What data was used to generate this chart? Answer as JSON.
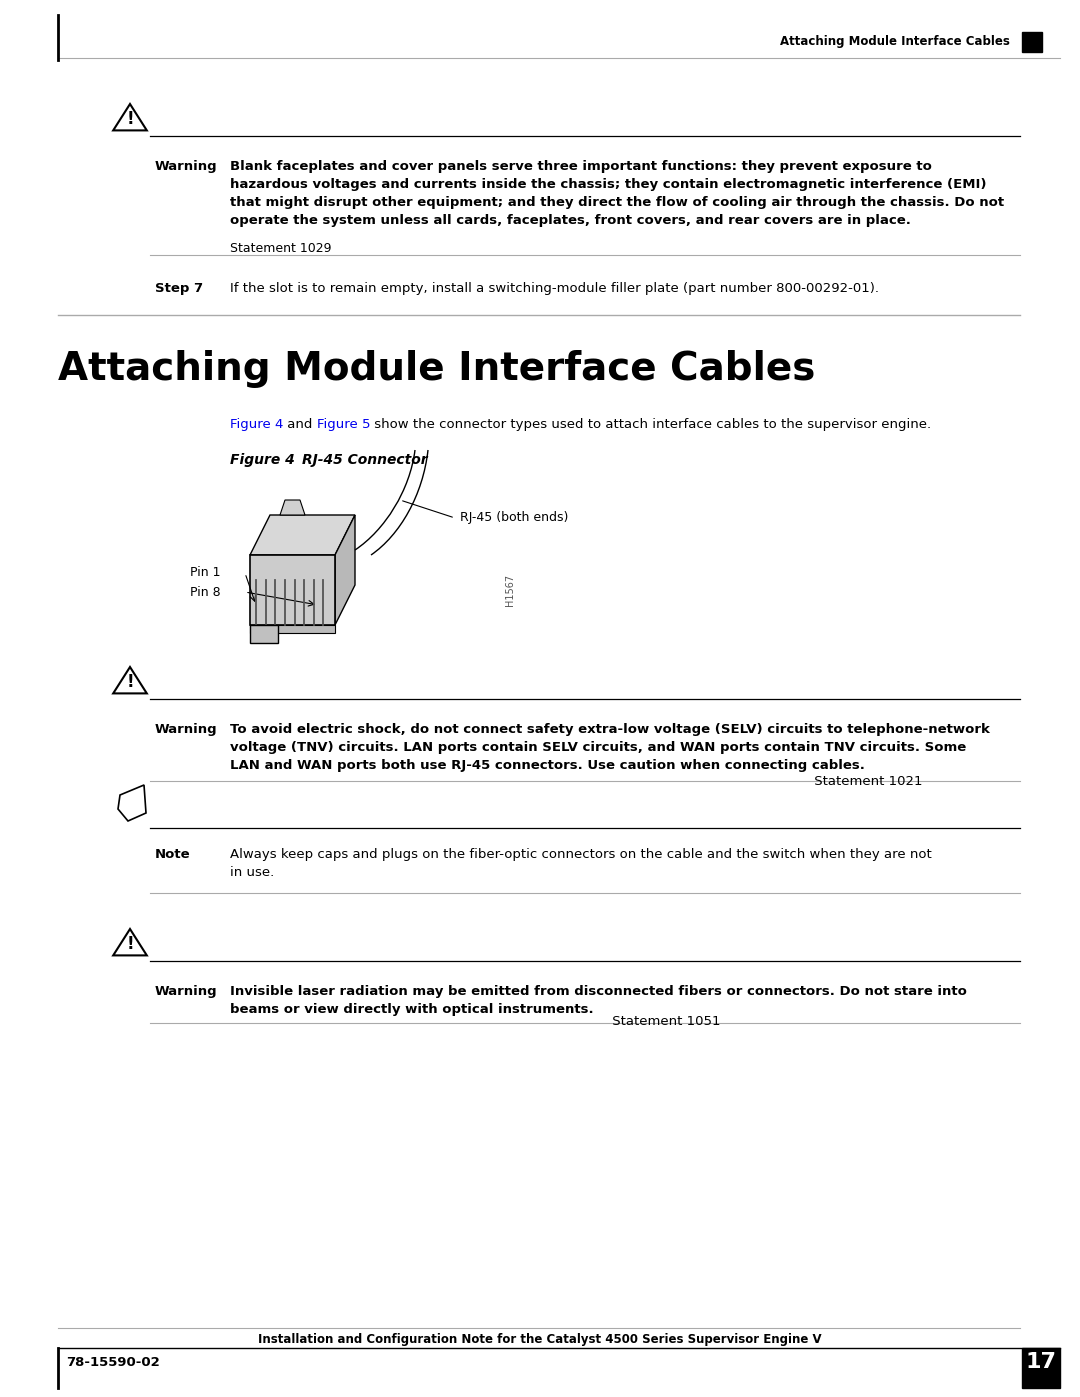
{
  "page_bg": "#ffffff",
  "header_text": "Attaching Module Interface Cables",
  "footer_left": "78-15590-02",
  "footer_center": "Installation and Configuration Note for the Catalyst 4500 Series Supervisor Engine V",
  "footer_page": "17",
  "warning1_bold_text": "Blank faceplates and cover panels serve three important functions: they prevent exposure to\nhazardous voltages and currents inside the chassis; they contain electromagnetic interference (EMI)\nthat might disrupt other equipment; and they direct the flow of cooling air through the chassis. Do not\noperate the system unless all cards, faceplates, front covers, and rear covers are in place.",
  "warning1_normal_text": "Statement 1029",
  "step7_label": "Step 7",
  "step7_text": "If the slot is to remain empty, install a switching-module filler plate (part number 800-00292-01).",
  "section_title": "Attaching Module Interface Cables",
  "intro_text_part1": "Figure 4",
  "intro_text_part2": " and ",
  "intro_text_part3": "Figure 5",
  "intro_text_part4": " show the connector types used to attach interface cables to the supervisor engine.",
  "figure_label": "Figure 4",
  "figure_title": "RJ-45 Connector",
  "figure_annotation1": "RJ-45 (both ends)",
  "figure_pin1": "Pin 1",
  "figure_pin8": "Pin 8",
  "figure_side_text": "H1567",
  "warning2_bold_text": "To avoid electric shock, do not connect safety extra-low voltage (SELV) circuits to telephone-network\nvoltage (TNV) circuits. LAN ports contain SELV circuits, and WAN ports contain TNV circuits. Some\nLAN and WAN ports both use RJ-45 connectors. Use caution when connecting cables.",
  "warning2_statement": "Statement 1021",
  "note_label": "Note",
  "note_text": "Always keep caps and plugs on the fiber-optic connectors on the cable and the switch when they are not\nin use.",
  "warning3_bold_text": "Invisible laser radiation may be emitted from disconnected fibers or connectors. Do not stare into\nbeams or view directly with optical instruments.",
  "warning3_statement": "Statement 1051",
  "link_color": "#0000ee",
  "text_color": "#000000",
  "gray_line": "#999999",
  "dark_line": "#333333"
}
